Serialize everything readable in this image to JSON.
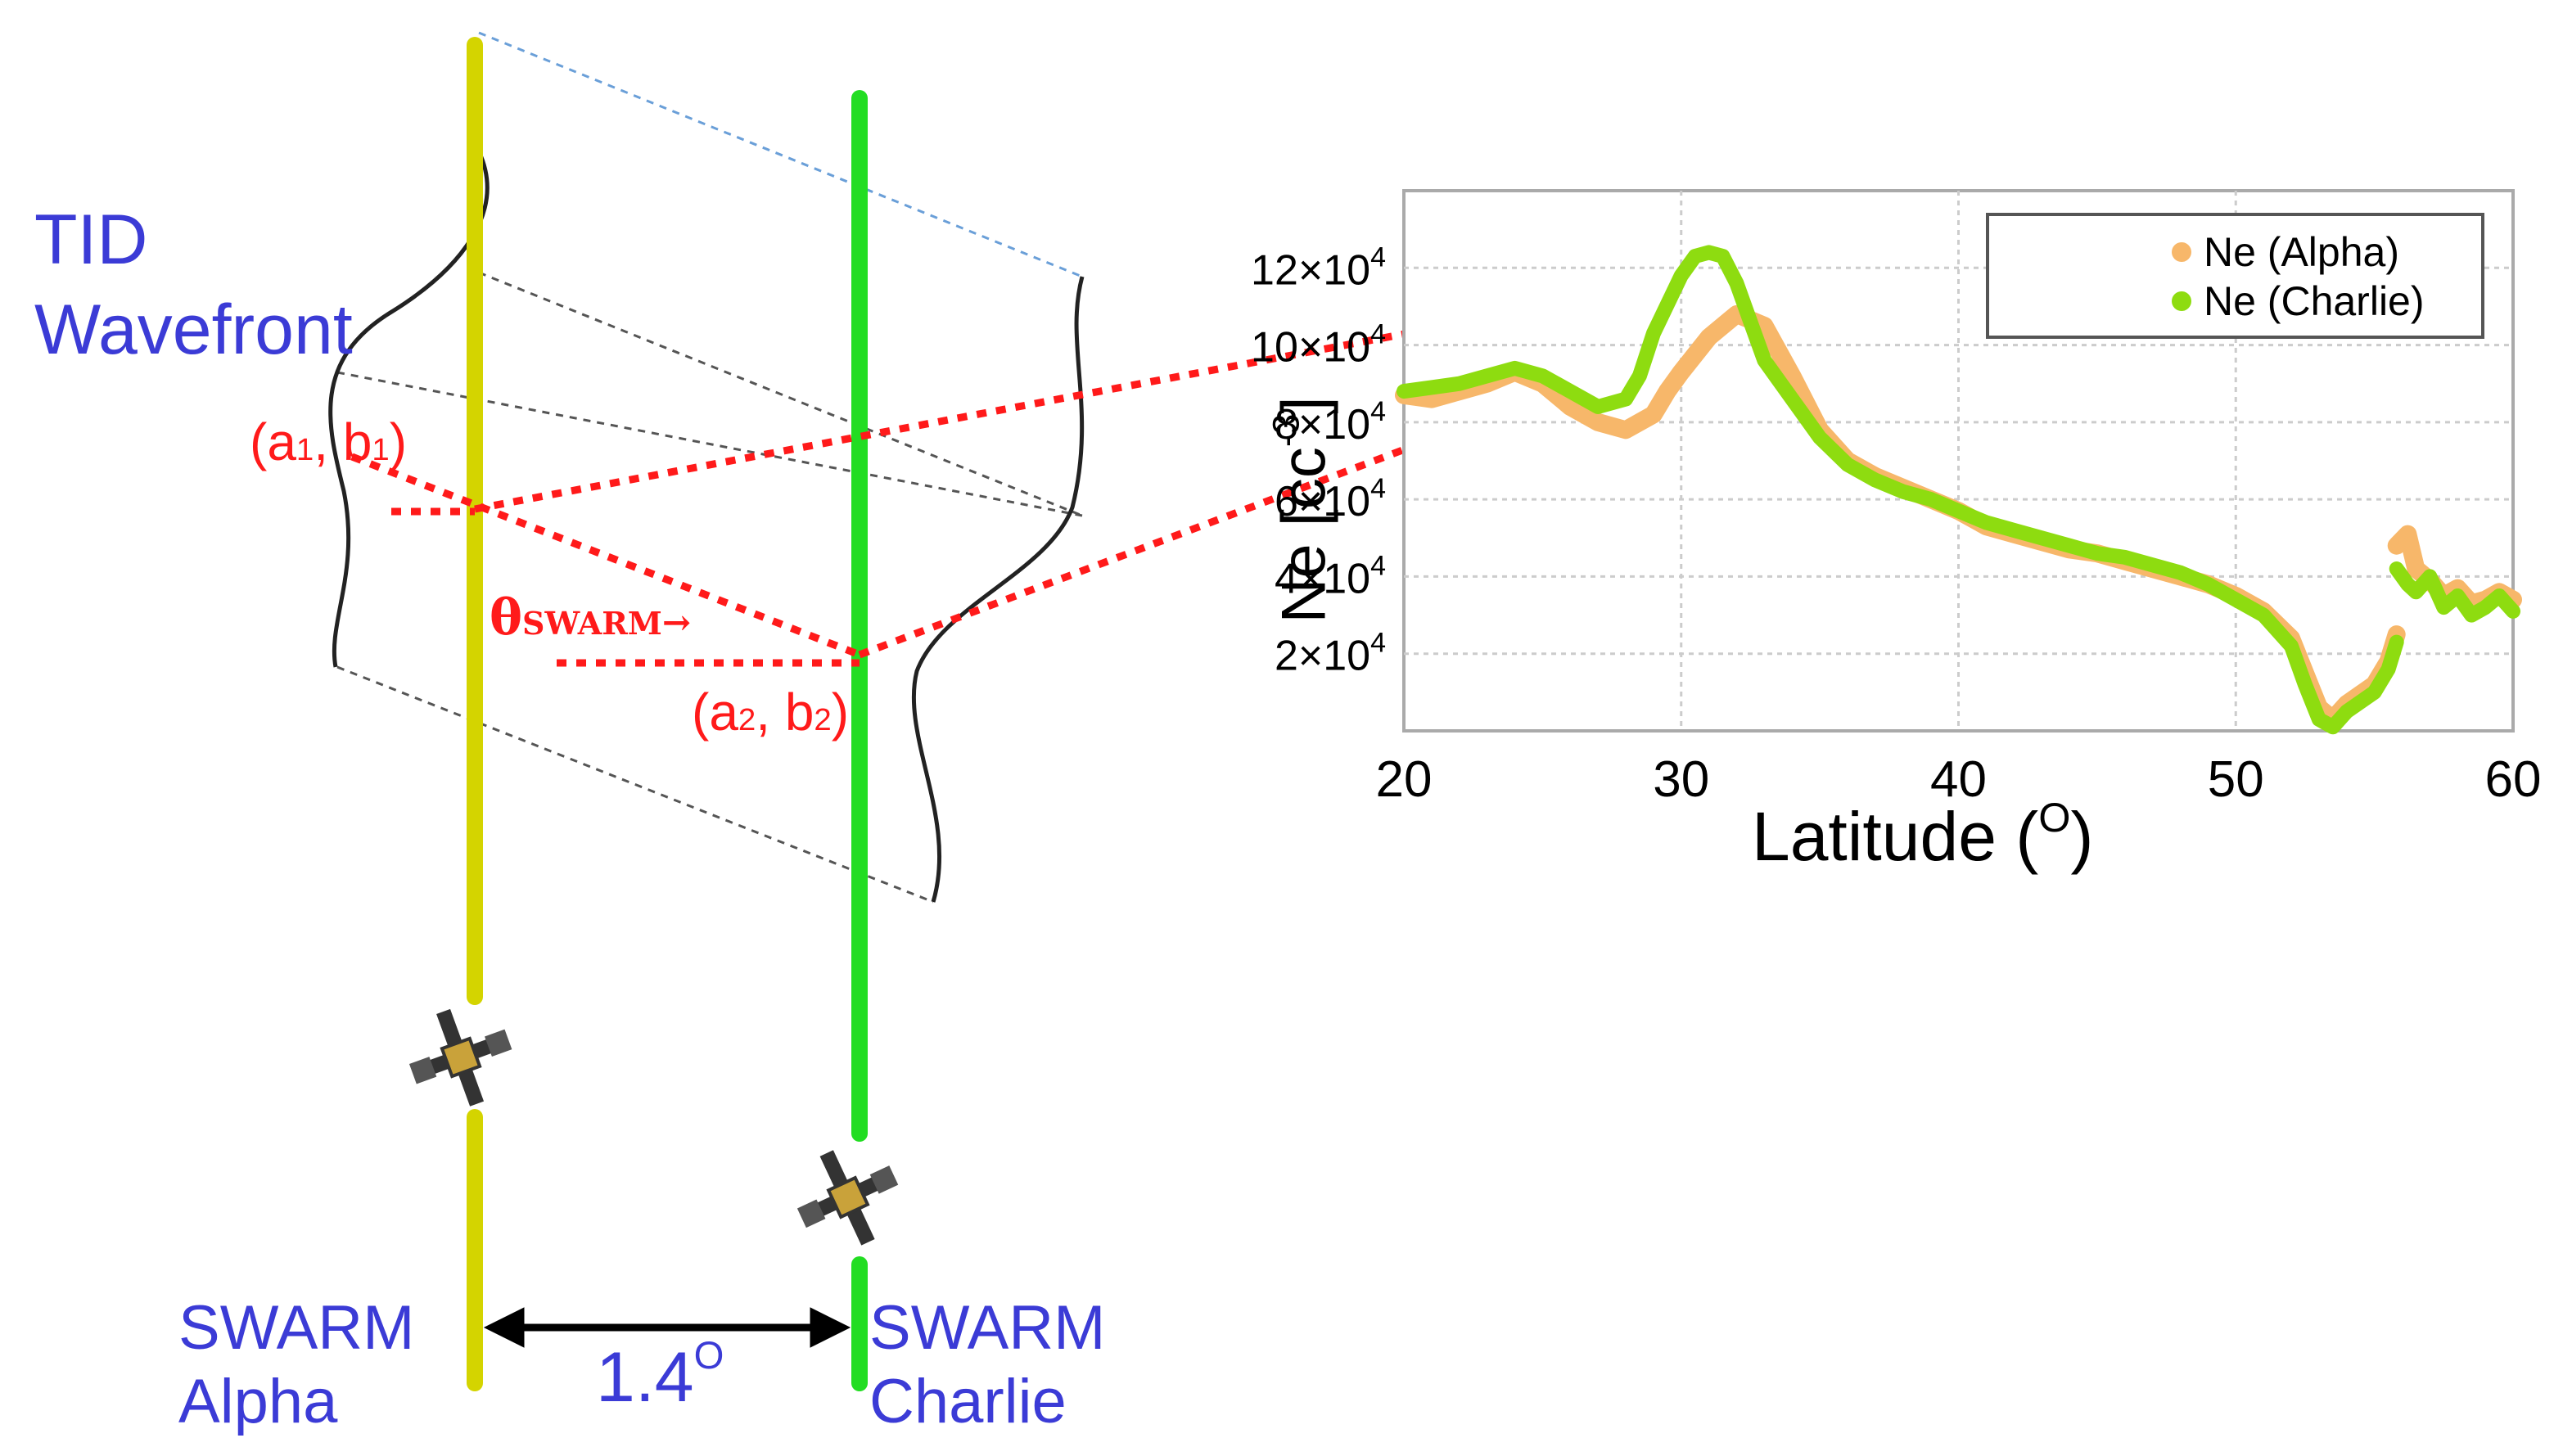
{
  "diagram": {
    "tid_label_line1": "TID",
    "tid_label_line2": "Wavefront",
    "point1_label": "(a",
    "point1_sub_a": "1",
    "point1_mid": ", b",
    "point1_sub_b": "1",
    "point1_close": ")",
    "point2_label": "(a",
    "point2_sub_a": "2",
    "point2_mid": ", b",
    "point2_sub_b": "2",
    "point2_close": ")",
    "theta_symbol": "θ",
    "theta_sub": "SWARM",
    "theta_arrow": "→",
    "separation_value": "1.4",
    "degree_symbol": "O",
    "sat_alpha_line1": "SWARM",
    "sat_alpha_line2": "Alpha",
    "sat_charlie_line1": "SWARM",
    "sat_charlie_line2": "Charlie",
    "colors": {
      "alpha_track": "#d4d400",
      "charlie_track": "#22dd22",
      "arrow_red": "#ff1a1a",
      "label_blue": "#3b3bd6"
    },
    "icons": [
      "satellite-icon",
      "satellite-icon"
    ]
  },
  "chart_data": {
    "type": "line",
    "ylabel": "Ne [cc",
    "ylabel_sup": "-3",
    "ylabel_close": "]",
    "xlabel": "Latitude (",
    "xlabel_sup": "O",
    "xlabel_close": ")",
    "xlim": [
      20,
      60
    ],
    "ylim": [
      0,
      14
    ],
    "x_ticks": [
      "20",
      "30",
      "40",
      "50",
      "60"
    ],
    "x_tick_values": [
      20,
      30,
      40,
      50,
      60
    ],
    "y_ticks": [
      "2×10",
      "4×10",
      "6×10",
      "8×10",
      "10×10",
      "12×10"
    ],
    "y_tick_sup": "4",
    "y_tick_values": [
      2,
      4,
      6,
      8,
      10,
      12
    ],
    "grid": true,
    "legend_position": "top-right",
    "series": [
      {
        "name": "Ne (Alpha)",
        "color": "#f7b76a",
        "x": [
          20,
          21,
          22,
          23,
          24,
          25,
          26,
          27,
          28,
          29,
          29.5,
          30,
          31,
          32,
          33,
          34,
          35,
          36,
          37,
          38,
          39,
          40,
          41,
          42,
          43,
          44,
          45,
          46,
          47,
          48,
          49,
          50,
          51,
          52,
          52.5,
          53,
          53.5,
          54,
          55,
          55.5,
          55.8
        ],
        "y": [
          8.7,
          8.6,
          8.8,
          9.0,
          9.3,
          9.0,
          8.4,
          8.0,
          7.8,
          8.2,
          8.8,
          9.3,
          10.2,
          10.8,
          10.5,
          9.2,
          7.8,
          7.0,
          6.6,
          6.3,
          6.0,
          5.7,
          5.3,
          5.1,
          4.9,
          4.7,
          4.6,
          4.4,
          4.2,
          4.0,
          3.8,
          3.5,
          3.1,
          2.4,
          1.5,
          0.6,
          0.3,
          0.7,
          1.2,
          1.8,
          2.5
        ]
      },
      {
        "name": "Ne (Charlie)",
        "color": "#8edc10",
        "x": [
          20,
          21,
          22,
          23,
          24,
          25,
          26,
          27,
          28,
          28.5,
          29,
          30,
          30.5,
          31,
          31.5,
          32,
          32.5,
          33,
          34,
          35,
          36,
          37,
          38,
          39,
          40,
          41,
          42,
          43,
          44,
          45,
          46,
          47,
          48,
          49,
          50,
          51,
          52,
          52.5,
          53,
          53.5,
          54,
          55,
          55.5,
          55.8
        ],
        "y": [
          8.8,
          8.9,
          9.0,
          9.2,
          9.4,
          9.2,
          8.8,
          8.4,
          8.6,
          9.2,
          10.3,
          11.8,
          12.3,
          12.4,
          12.3,
          11.6,
          10.6,
          9.6,
          8.6,
          7.6,
          6.9,
          6.5,
          6.2,
          6.0,
          5.7,
          5.4,
          5.2,
          5.0,
          4.8,
          4.6,
          4.5,
          4.3,
          4.1,
          3.8,
          3.4,
          3.0,
          2.2,
          1.2,
          0.3,
          0.1,
          0.5,
          1.0,
          1.6,
          2.3
        ]
      },
      {
        "name": "",
        "color": "#f7b76a",
        "x": [
          55.8,
          56.2,
          56.5,
          57,
          57.5,
          58,
          58.5,
          59,
          59.5,
          60
        ],
        "y": [
          4.8,
          5.1,
          4.2,
          3.9,
          3.5,
          3.7,
          3.3,
          3.4,
          3.6,
          3.4
        ]
      },
      {
        "name": "",
        "color": "#8edc10",
        "x": [
          55.8,
          56.2,
          56.5,
          57,
          57.5,
          58,
          58.5,
          59,
          59.5,
          60
        ],
        "y": [
          4.2,
          3.8,
          3.6,
          4.0,
          3.2,
          3.5,
          3.0,
          3.2,
          3.5,
          3.1
        ]
      }
    ]
  }
}
